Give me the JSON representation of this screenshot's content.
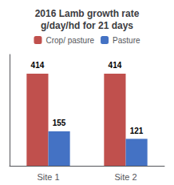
{
  "chart_data": {
    "type": "bar",
    "title": "2016 Lamb growth rate\ng/day/hd for 21 days",
    "categories": [
      "Site 1",
      "Site 2"
    ],
    "series": [
      {
        "name": "Crop/ pasture",
        "color": "#c0504d",
        "values": [
          414,
          414
        ]
      },
      {
        "name": "Pasture",
        "color": "#4472c4",
        "values": [
          155,
          121
        ]
      }
    ],
    "ylim": [
      0,
      500
    ],
    "yticks": [],
    "grid": false,
    "legend": "top",
    "data_labels": true,
    "tick_labels": "x"
  }
}
